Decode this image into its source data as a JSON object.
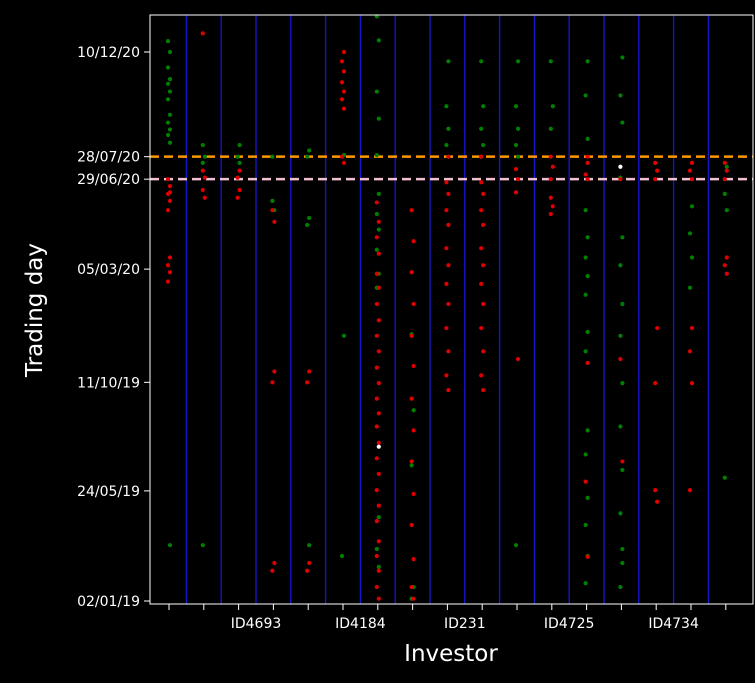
{
  "chart_data": {
    "type": "scatter",
    "xlabel": "Investor",
    "ylabel": "Trading day",
    "y_tick_labels": [
      "02/01/19",
      "24/05/19",
      "11/10/19",
      "05/03/20",
      "29/06/20",
      "28/07/20",
      "10/12/20"
    ],
    "y_tick_dates": [
      "2019-01-02",
      "2019-05-24",
      "2019-10-11",
      "2020-03-05",
      "2020-06-29",
      "2020-07-28",
      "2020-12-10"
    ],
    "ylim": [
      "2019-01-02",
      "2021-01-25"
    ],
    "x_tick_labels": [
      "ID4693",
      "ID4184",
      "ID231",
      "ID4725",
      "ID4734"
    ],
    "x_tick_label_positions": [
      2.5,
      5.5,
      8.5,
      11.5,
      14.5
    ],
    "investor_slots": 17,
    "xlim": [
      -0.5,
      16.5
    ],
    "reference_lines": [
      {
        "date": "2020-07-28",
        "color": "#ff9900",
        "style": "dashed"
      },
      {
        "date": "2020-06-29",
        "color": "#f0c0d0",
        "style": "dashed"
      }
    ],
    "colors": {
      "background": "#000000",
      "separator": "#1515cc",
      "buy": "#008000",
      "sell": "#e00000",
      "text": "#ffffff"
    },
    "series": [
      {
        "color": "green",
        "points": [
          [
            0,
            "2020-12-24"
          ],
          [
            0,
            "2020-12-10"
          ],
          [
            0,
            "2020-11-20"
          ],
          [
            0,
            "2020-11-05"
          ],
          [
            0,
            "2020-10-30"
          ],
          [
            0,
            "2020-10-20"
          ],
          [
            0,
            "2020-10-10"
          ],
          [
            0,
            "2020-09-20"
          ],
          [
            0,
            "2020-09-10"
          ],
          [
            0,
            "2020-09-01"
          ],
          [
            0,
            "2020-08-25"
          ],
          [
            0,
            "2020-08-15"
          ],
          [
            1,
            "2020-08-12"
          ],
          [
            1,
            "2020-07-28"
          ],
          [
            1,
            "2020-07-20"
          ],
          [
            2,
            "2020-08-12"
          ],
          [
            2,
            "2020-07-28"
          ],
          [
            2,
            "2020-07-20"
          ],
          [
            3,
            "2020-06-01"
          ],
          [
            3,
            "2020-05-20"
          ],
          [
            3,
            "2020-07-28"
          ],
          [
            4,
            "2020-08-05"
          ],
          [
            4,
            "2020-07-28"
          ],
          [
            4,
            "2020-05-10"
          ],
          [
            4,
            "2020-05-01"
          ],
          [
            5,
            "2019-12-10"
          ],
          [
            5,
            "2019-03-01"
          ],
          [
            5,
            "2020-07-30"
          ],
          [
            6,
            "2021-01-25"
          ],
          [
            6,
            "2020-12-25"
          ],
          [
            6,
            "2020-10-20"
          ],
          [
            6,
            "2020-09-15"
          ],
          [
            6,
            "2020-07-30"
          ],
          [
            6,
            "2020-06-10"
          ],
          [
            6,
            "2020-05-15"
          ],
          [
            6,
            "2020-04-25"
          ],
          [
            6,
            "2020-03-30"
          ],
          [
            6,
            "2020-02-28"
          ],
          [
            6,
            "2020-02-10"
          ],
          [
            6,
            "2019-04-20"
          ],
          [
            6,
            "2019-03-10"
          ],
          [
            6,
            "2019-02-15"
          ],
          [
            7,
            "2019-12-12"
          ],
          [
            7,
            "2019-09-05"
          ],
          [
            7,
            "2019-06-26"
          ],
          [
            7,
            "2019-01-20"
          ],
          [
            7,
            "2019-01-05"
          ],
          [
            8,
            "2020-11-28"
          ],
          [
            8,
            "2020-10-01"
          ],
          [
            8,
            "2020-09-02"
          ],
          [
            8,
            "2020-08-12"
          ],
          [
            8,
            "2020-07-28"
          ],
          [
            9,
            "2020-11-28"
          ],
          [
            9,
            "2020-10-01"
          ],
          [
            9,
            "2020-09-02"
          ],
          [
            9,
            "2020-08-12"
          ],
          [
            9,
            "2020-07-28"
          ],
          [
            10,
            "2020-11-28"
          ],
          [
            10,
            "2020-10-01"
          ],
          [
            10,
            "2020-09-02"
          ],
          [
            10,
            "2020-08-12"
          ],
          [
            10,
            "2020-07-28"
          ],
          [
            11,
            "2020-11-28"
          ],
          [
            11,
            "2020-10-01"
          ],
          [
            11,
            "2020-09-02"
          ],
          [
            12,
            "2020-11-28"
          ],
          [
            12,
            "2020-10-15"
          ],
          [
            12,
            "2020-08-20"
          ],
          [
            12,
            "2020-05-20"
          ],
          [
            12,
            "2020-04-15"
          ],
          [
            12,
            "2020-03-20"
          ],
          [
            12,
            "2020-02-25"
          ],
          [
            12,
            "2020-02-01"
          ],
          [
            12,
            "2019-12-15"
          ],
          [
            12,
            "2019-11-20"
          ],
          [
            12,
            "2019-08-10"
          ],
          [
            12,
            "2019-07-10"
          ],
          [
            12,
            "2019-05-15"
          ],
          [
            12,
            "2019-04-10"
          ],
          [
            12,
            "2019-03-01"
          ],
          [
            12,
            "2019-01-25"
          ],
          [
            13,
            "2020-12-03"
          ],
          [
            13,
            "2020-10-15"
          ],
          [
            13,
            "2020-09-10"
          ],
          [
            13,
            "2020-07-01"
          ],
          [
            13,
            "2020-04-15"
          ],
          [
            13,
            "2020-03-10"
          ],
          [
            13,
            "2020-01-20"
          ],
          [
            13,
            "2019-12-10"
          ],
          [
            13,
            "2019-10-10"
          ],
          [
            13,
            "2019-08-15"
          ],
          [
            13,
            "2019-06-20"
          ],
          [
            13,
            "2019-04-25"
          ],
          [
            13,
            "2019-03-10"
          ],
          [
            13,
            "2019-01-20"
          ],
          [
            15,
            "2020-05-25"
          ],
          [
            15,
            "2020-04-20"
          ],
          [
            15,
            "2020-03-20"
          ],
          [
            15,
            "2020-02-10"
          ],
          [
            16,
            "2020-07-15"
          ],
          [
            16,
            "2020-06-10"
          ],
          [
            16,
            "2020-05-20"
          ],
          [
            16,
            "2019-06-10"
          ],
          [
            0,
            "2019-03-15"
          ],
          [
            1,
            "2019-03-15"
          ],
          [
            4,
            "2019-03-15"
          ],
          [
            10,
            "2019-03-15"
          ],
          [
            13,
            "2019-02-20"
          ]
        ]
      },
      {
        "color": "red",
        "points": [
          [
            0,
            "2020-06-29"
          ],
          [
            0,
            "2020-06-20"
          ],
          [
            0,
            "2020-06-10"
          ],
          [
            0,
            "2020-06-01"
          ],
          [
            0,
            "2020-05-20"
          ],
          [
            0,
            "2020-03-20"
          ],
          [
            0,
            "2020-03-10"
          ],
          [
            0,
            "2020-03-01"
          ],
          [
            0,
            "2020-02-18"
          ],
          [
            0,
            "2020-06-12"
          ],
          [
            1,
            "2020-07-10"
          ],
          [
            1,
            "2020-07-01"
          ],
          [
            1,
            "2020-06-15"
          ],
          [
            1,
            "2020-06-05"
          ],
          [
            1,
            "2021-01-03"
          ],
          [
            2,
            "2020-07-10"
          ],
          [
            2,
            "2020-07-01"
          ],
          [
            2,
            "2020-06-15"
          ],
          [
            2,
            "2020-06-05"
          ],
          [
            3,
            "2020-05-05"
          ],
          [
            3,
            "2020-05-20"
          ],
          [
            3,
            "2019-10-25"
          ],
          [
            3,
            "2019-10-11"
          ],
          [
            3,
            "2019-02-20"
          ],
          [
            3,
            "2019-02-10"
          ],
          [
            4,
            "2019-10-25"
          ],
          [
            4,
            "2019-10-11"
          ],
          [
            4,
            "2019-02-20"
          ],
          [
            4,
            "2019-02-10"
          ],
          [
            5,
            "2020-12-10"
          ],
          [
            5,
            "2020-11-28"
          ],
          [
            5,
            "2020-11-15"
          ],
          [
            5,
            "2020-11-01"
          ],
          [
            5,
            "2020-10-20"
          ],
          [
            5,
            "2020-10-10"
          ],
          [
            5,
            "2020-09-28"
          ],
          [
            5,
            "2020-07-28"
          ],
          [
            5,
            "2020-07-20"
          ],
          [
            6,
            "2020-05-30"
          ],
          [
            6,
            "2020-05-05"
          ],
          [
            6,
            "2020-04-15"
          ],
          [
            6,
            "2020-03-25"
          ],
          [
            6,
            "2020-02-28"
          ],
          [
            6,
            "2020-02-10"
          ],
          [
            6,
            "2020-01-20"
          ],
          [
            6,
            "2019-12-30"
          ],
          [
            6,
            "2019-12-10"
          ],
          [
            6,
            "2019-11-20"
          ],
          [
            6,
            "2019-10-30"
          ],
          [
            6,
            "2019-10-10"
          ],
          [
            6,
            "2019-09-20"
          ],
          [
            6,
            "2019-09-01"
          ],
          [
            6,
            "2019-08-15"
          ],
          [
            6,
            "2019-07-25"
          ],
          [
            6,
            "2019-07-05"
          ],
          [
            6,
            "2019-06-15"
          ],
          [
            6,
            "2019-05-25"
          ],
          [
            6,
            "2019-05-05"
          ],
          [
            6,
            "2019-04-15"
          ],
          [
            6,
            "2019-03-20"
          ],
          [
            6,
            "2019-03-01"
          ],
          [
            6,
            "2019-02-10"
          ],
          [
            6,
            "2019-01-20"
          ],
          [
            6,
            "2019-01-05"
          ],
          [
            7,
            "2020-05-20"
          ],
          [
            7,
            "2020-04-10"
          ],
          [
            7,
            "2020-03-01"
          ],
          [
            7,
            "2020-01-20"
          ],
          [
            7,
            "2019-12-10"
          ],
          [
            7,
            "2019-11-01"
          ],
          [
            7,
            "2019-09-20"
          ],
          [
            7,
            "2019-08-10"
          ],
          [
            7,
            "2019-07-01"
          ],
          [
            7,
            "2019-05-20"
          ],
          [
            7,
            "2019-04-10"
          ],
          [
            7,
            "2019-02-25"
          ],
          [
            7,
            "2019-01-20"
          ],
          [
            7,
            "2019-01-05"
          ],
          [
            8,
            "2020-06-25"
          ],
          [
            8,
            "2020-06-10"
          ],
          [
            8,
            "2020-05-20"
          ],
          [
            8,
            "2020-05-01"
          ],
          [
            8,
            "2020-04-01"
          ],
          [
            8,
            "2020-03-10"
          ],
          [
            8,
            "2020-02-15"
          ],
          [
            8,
            "2020-01-20"
          ],
          [
            8,
            "2019-12-20"
          ],
          [
            8,
            "2019-11-20"
          ],
          [
            8,
            "2019-10-20"
          ],
          [
            8,
            "2019-10-01"
          ],
          [
            9,
            "2020-06-25"
          ],
          [
            9,
            "2020-06-10"
          ],
          [
            9,
            "2020-05-20"
          ],
          [
            9,
            "2020-05-01"
          ],
          [
            9,
            "2020-04-01"
          ],
          [
            9,
            "2020-03-10"
          ],
          [
            9,
            "2020-02-15"
          ],
          [
            9,
            "2020-01-20"
          ],
          [
            9,
            "2019-12-20"
          ],
          [
            9,
            "2019-11-20"
          ],
          [
            9,
            "2019-10-20"
          ],
          [
            9,
            "2019-10-01"
          ],
          [
            10,
            "2020-07-12"
          ],
          [
            10,
            "2020-06-29"
          ],
          [
            10,
            "2020-06-12"
          ],
          [
            10,
            "2019-11-10"
          ],
          [
            11,
            "2020-06-05"
          ],
          [
            11,
            "2020-05-25"
          ],
          [
            11,
            "2020-05-15"
          ],
          [
            12,
            "2019-11-05"
          ],
          [
            12,
            "2019-06-05"
          ],
          [
            12,
            "2019-02-28"
          ],
          [
            13,
            "2019-11-10"
          ],
          [
            13,
            "2019-07-01"
          ],
          [
            14,
            "2020-07-20"
          ],
          [
            14,
            "2020-07-10"
          ],
          [
            14,
            "2020-06-29"
          ],
          [
            15,
            "2020-07-20"
          ],
          [
            15,
            "2020-07-10"
          ],
          [
            15,
            "2020-06-29"
          ],
          [
            16,
            "2020-07-20"
          ],
          [
            16,
            "2020-07-10"
          ],
          [
            16,
            "2020-06-29"
          ],
          [
            11,
            "2020-07-15"
          ],
          [
            11,
            "2020-06-29"
          ],
          [
            12,
            "2020-07-20"
          ],
          [
            12,
            "2020-07-05"
          ],
          [
            12,
            "2020-06-29"
          ],
          [
            13,
            "2020-06-29"
          ],
          [
            14,
            "2019-12-20"
          ],
          [
            14,
            "2019-10-10"
          ],
          [
            14,
            "2019-05-10"
          ],
          [
            14,
            "2019-05-25"
          ],
          [
            15,
            "2019-12-20"
          ],
          [
            15,
            "2019-11-20"
          ],
          [
            15,
            "2019-10-10"
          ],
          [
            15,
            "2019-05-25"
          ],
          [
            16,
            "2020-03-20"
          ],
          [
            16,
            "2020-03-10"
          ],
          [
            16,
            "2020-02-28"
          ],
          [
            9,
            "2020-07-28"
          ],
          [
            8,
            "2020-07-28"
          ],
          [
            11,
            "2020-07-28"
          ],
          [
            12,
            "2020-07-28"
          ]
        ]
      },
      {
        "color": "white",
        "points": [
          [
            13,
            "2020-07-15"
          ],
          [
            6,
            "2019-07-20"
          ]
        ]
      }
    ]
  }
}
